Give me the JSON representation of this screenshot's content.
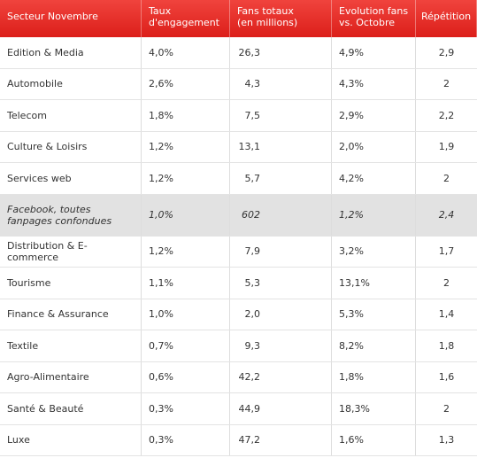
{
  "columns": [
    "Secteur Novembre",
    "Taux\nd'engagement",
    "Fans totaux\n(en millions)",
    "Evolution fans\nvs. Octobre",
    "Répétition"
  ],
  "rows": [
    {
      "sector": "Edition & Media",
      "engagement": "4,0%",
      "fans": "26,3",
      "evolution": "4,9%",
      "repetition": "2,9"
    },
    {
      "sector": "Automobile",
      "engagement": "2,6%",
      "fans": "4,3",
      "evolution": "4,3%",
      "repetition": "2"
    },
    {
      "sector": "Telecom",
      "engagement": "1,8%",
      "fans": "7,5",
      "evolution": "2,9%",
      "repetition": "2,2"
    },
    {
      "sector": "Culture & Loisirs",
      "engagement": "1,2%",
      "fans": "13,1",
      "evolution": "2,0%",
      "repetition": "1,9"
    },
    {
      "sector": "Services web",
      "engagement": "1,2%",
      "fans": "5,7",
      "evolution": "4,2%",
      "repetition": "2"
    },
    {
      "sector": "Facebook, toutes fanpages confondues",
      "engagement": "1,0%",
      "fans": "602",
      "evolution": "1,2%",
      "repetition": "2,4",
      "highlight": true
    },
    {
      "sector": "Distribution & E-commerce",
      "engagement": "1,2%",
      "fans": "7,9",
      "evolution": "3,2%",
      "repetition": "1,7"
    },
    {
      "sector": "Tourisme",
      "engagement": "1,1%",
      "fans": "5,3",
      "evolution": "13,1%",
      "repetition": "2"
    },
    {
      "sector": "Finance & Assurance",
      "engagement": "1,0%",
      "fans": "2,0",
      "evolution": "5,3%",
      "repetition": "1,4"
    },
    {
      "sector": "Textile",
      "engagement": "0,7%",
      "fans": "9,3",
      "evolution": "8,2%",
      "repetition": "1,8"
    },
    {
      "sector": "Agro-Alimentaire",
      "engagement": "0,6%",
      "fans": "42,2",
      "evolution": "1,8%",
      "repetition": "1,6"
    },
    {
      "sector": "Santé & Beauté",
      "engagement": "0,3%",
      "fans": "44,9",
      "evolution": "18,3%",
      "repetition": "2"
    },
    {
      "sector": "Luxe",
      "engagement": "0,3%",
      "fans": "47,2",
      "evolution": "1,6%",
      "repetition": "1,3"
    }
  ],
  "colors": {
    "header_background": "#e5302b",
    "header_text": "#ffffff",
    "highlight_row": "#e2e2e2"
  }
}
